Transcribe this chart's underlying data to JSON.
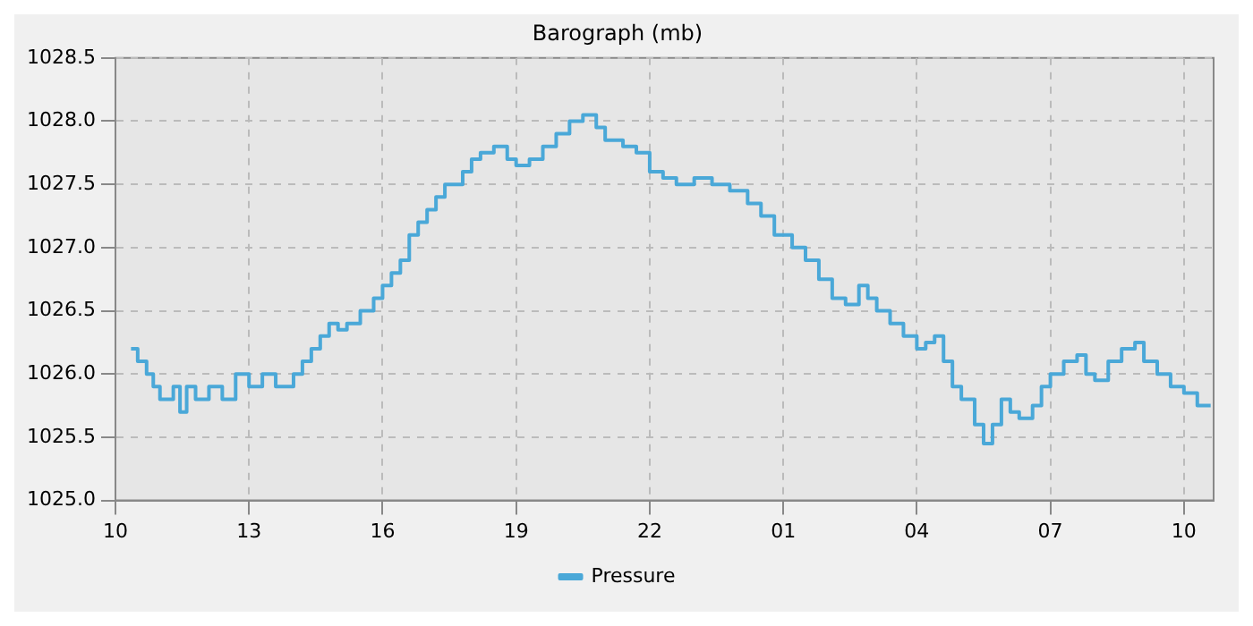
{
  "chart_data": {
    "type": "step",
    "title": "Barograph (mb)",
    "x": [
      "--01-01T10:21",
      "--01-01T10:30",
      "--01-01T10:42",
      "--01-01T10:51",
      "--01-01T11:00",
      "--01-01T11:18",
      "--01-01T11:27",
      "--01-01T11:36",
      "--01-01T11:48",
      "--01-01T12:06",
      "--01-01T12:24",
      "--01-01T12:42",
      "--01-01T13:00",
      "--01-01T13:18",
      "--01-01T13:36",
      "--01-01T14:00",
      "--01-01T14:12",
      "--01-01T14:24",
      "--01-01T14:36",
      "--01-01T14:48",
      "--01-01T15:00",
      "--01-01T15:12",
      "--01-01T15:30",
      "--01-01T15:48",
      "--01-01T16:00",
      "--01-01T16:12",
      "--01-01T16:24",
      "--01-01T16:36",
      "--01-01T16:48",
      "--01-01T17:00",
      "--01-01T17:12",
      "--01-01T17:24",
      "--01-01T17:48",
      "--01-01T18:00",
      "--01-01T18:12",
      "--01-01T18:30",
      "--01-01T18:48",
      "--01-01T19:00",
      "--01-01T19:18",
      "--01-01T19:36",
      "--01-01T19:54",
      "--01-01T20:12",
      "--01-01T20:30",
      "--01-01T20:48",
      "--01-01T21:00",
      "--01-01T21:24",
      "--01-01T21:42",
      "--01-01T22:00",
      "--01-01T22:18",
      "--01-01T22:36",
      "--01-01T23:00",
      "--01-01T23:24",
      "--01-01T23:48",
      "--01-02T00:12",
      "--01-02T00:30",
      "--01-02T00:48",
      "--01-02T01:12",
      "--01-02T01:30",
      "--01-02T01:48",
      "--01-02T02:06",
      "--01-02T02:24",
      "--01-02T02:42",
      "--01-02T02:54",
      "--01-02T03:06",
      "--01-02T03:24",
      "--01-02T03:42",
      "--01-02T04:00",
      "--01-02T04:12",
      "--01-02T04:24",
      "--01-02T04:36",
      "--01-02T04:48",
      "--01-02T05:00",
      "--01-02T05:18",
      "--01-02T05:30",
      "--01-02T05:42",
      "--01-02T05:54",
      "--01-02T06:06",
      "--01-02T06:18",
      "--01-02T06:36",
      "--01-02T06:48",
      "--01-02T07:00",
      "--01-02T07:18",
      "--01-02T07:36",
      "--01-02T07:48",
      "--01-02T08:00",
      "--01-02T08:18",
      "--01-02T08:36",
      "--01-02T08:54",
      "--01-02T09:06",
      "--01-02T09:24",
      "--01-02T09:42",
      "--01-02T10:00",
      "--01-02T10:18",
      "--01-02T10:36"
    ],
    "series": [
      {
        "name": "Pressure",
        "color": "#4aa8d8",
        "values": [
          1026.2,
          1026.1,
          1026.0,
          1025.9,
          1025.8,
          1025.9,
          1025.7,
          1025.9,
          1025.8,
          1025.9,
          1025.8,
          1026.0,
          1025.9,
          1026.0,
          1025.9,
          1026.0,
          1026.1,
          1026.2,
          1026.3,
          1026.4,
          1026.35,
          1026.4,
          1026.5,
          1026.6,
          1026.7,
          1026.8,
          1026.9,
          1027.1,
          1027.2,
          1027.3,
          1027.4,
          1027.5,
          1027.6,
          1027.7,
          1027.75,
          1027.8,
          1027.7,
          1027.65,
          1027.7,
          1027.8,
          1027.9,
          1028.0,
          1028.05,
          1027.95,
          1027.85,
          1027.8,
          1027.75,
          1027.6,
          1027.55,
          1027.5,
          1027.55,
          1027.5,
          1027.45,
          1027.35,
          1027.25,
          1027.1,
          1027.0,
          1026.9,
          1026.75,
          1026.6,
          1026.55,
          1026.7,
          1026.6,
          1026.5,
          1026.4,
          1026.3,
          1026.2,
          1026.25,
          1026.3,
          1026.1,
          1025.9,
          1025.8,
          1025.6,
          1025.45,
          1025.6,
          1025.8,
          1025.7,
          1025.65,
          1025.75,
          1025.9,
          1026.0,
          1026.1,
          1026.15,
          1026.0,
          1025.95,
          1026.1,
          1026.2,
          1026.25,
          1026.1,
          1026.0,
          1025.9,
          1025.85,
          1025.75,
          1025.75
        ]
      }
    ],
    "xlim": [
      "--01-01T10:00",
      "--01-02T10:40"
    ],
    "xticks": [
      {
        "value": "--01-01T10:00",
        "label": "10"
      },
      {
        "value": "--01-01T13:00",
        "label": "13"
      },
      {
        "value": "--01-01T16:00",
        "label": "16"
      },
      {
        "value": "--01-01T19:00",
        "label": "19"
      },
      {
        "value": "--01-01T22:00",
        "label": "22"
      },
      {
        "value": "--01-02T01:00",
        "label": "01"
      },
      {
        "value": "--01-02T04:00",
        "label": "04"
      },
      {
        "value": "--01-02T07:00",
        "label": "07"
      },
      {
        "value": "--01-02T10:00",
        "label": "10"
      }
    ],
    "ylim": [
      1025,
      1028.5
    ],
    "yticks": [
      {
        "value": 1025,
        "label": "1025.0"
      },
      {
        "value": 1025.5,
        "label": "1025.5"
      },
      {
        "value": 1026,
        "label": "1026.0"
      },
      {
        "value": 1026.5,
        "label": "1026.5"
      },
      {
        "value": 1027,
        "label": "1027.0"
      },
      {
        "value": 1027.5,
        "label": "1027.5"
      },
      {
        "value": 1028,
        "label": "1028.0"
      },
      {
        "value": 1028.5,
        "label": "1028.5"
      }
    ],
    "grid": true,
    "legend": "bottom",
    "line_style": "solid",
    "marker": "none"
  }
}
